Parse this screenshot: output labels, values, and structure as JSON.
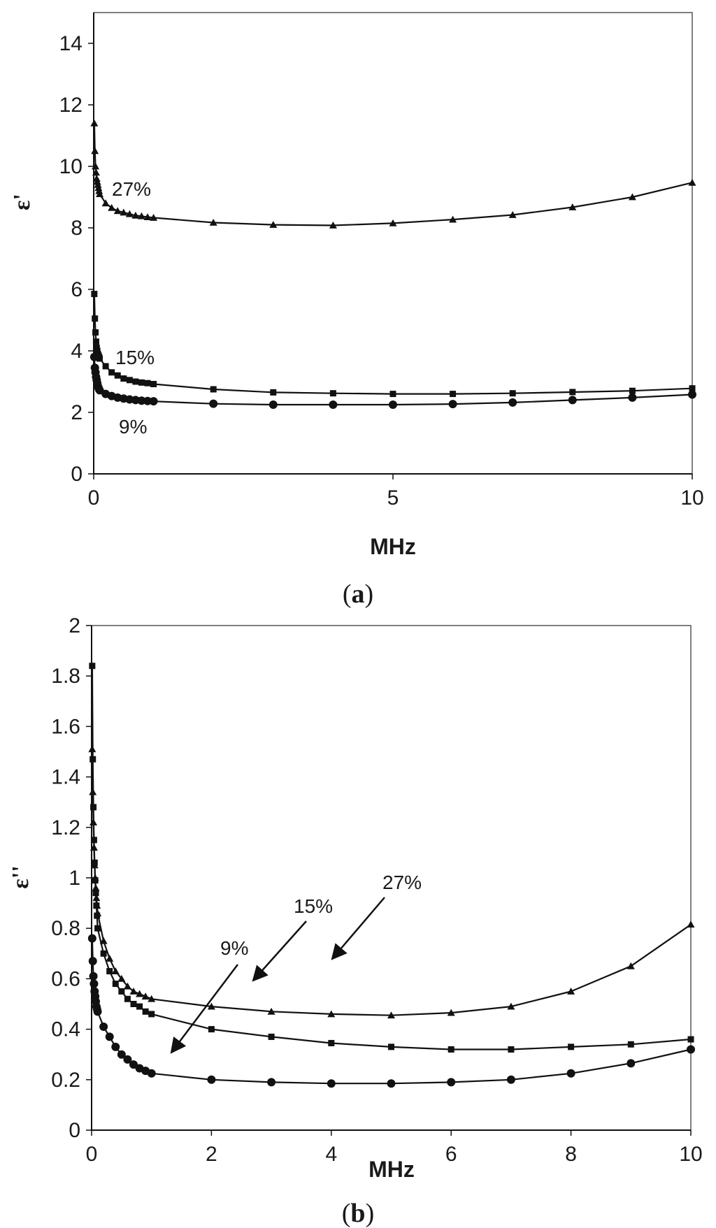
{
  "chart_data": [
    {
      "type": "line",
      "caption": [
        "(",
        "a",
        ")"
      ],
      "xlabel": "MHz",
      "ylabel": "ε'",
      "xlim": [
        0,
        10
      ],
      "ylim": [
        0,
        15
      ],
      "xticks": [
        0,
        5,
        10
      ],
      "yticks": [
        0,
        2,
        4,
        6,
        8,
        10,
        12,
        14
      ],
      "grid": false,
      "series": [
        {
          "name": "27%",
          "marker": "triangle",
          "x": [
            0.01,
            0.02,
            0.03,
            0.04,
            0.05,
            0.06,
            0.07,
            0.08,
            0.09,
            0.1,
            0.2,
            0.3,
            0.4,
            0.5,
            0.6,
            0.7,
            0.8,
            0.9,
            1,
            2,
            3,
            4,
            5,
            6,
            7,
            8,
            9,
            10
          ],
          "values": [
            11.4,
            10.5,
            10.0,
            9.8,
            9.6,
            9.5,
            9.4,
            9.3,
            9.2,
            9.1,
            8.8,
            8.65,
            8.55,
            8.5,
            8.45,
            8.4,
            8.38,
            8.35,
            8.33,
            8.17,
            8.1,
            8.08,
            8.15,
            8.27,
            8.42,
            8.67,
            9.0,
            9.47
          ]
        },
        {
          "name": "15%",
          "marker": "square",
          "x": [
            0.01,
            0.02,
            0.03,
            0.04,
            0.05,
            0.06,
            0.07,
            0.08,
            0.09,
            0.1,
            0.2,
            0.3,
            0.4,
            0.5,
            0.6,
            0.7,
            0.8,
            0.9,
            1,
            2,
            3,
            4,
            5,
            6,
            7,
            8,
            9,
            10
          ],
          "values": [
            5.85,
            5.05,
            4.6,
            4.3,
            4.1,
            4.0,
            3.9,
            3.85,
            3.8,
            3.75,
            3.5,
            3.3,
            3.2,
            3.1,
            3.05,
            3.0,
            2.97,
            2.95,
            2.92,
            2.75,
            2.65,
            2.62,
            2.6,
            2.6,
            2.62,
            2.66,
            2.7,
            2.78
          ]
        },
        {
          "name": "9%",
          "marker": "circle",
          "x": [
            0.01,
            0.02,
            0.03,
            0.04,
            0.05,
            0.06,
            0.07,
            0.08,
            0.09,
            0.1,
            0.2,
            0.3,
            0.4,
            0.5,
            0.6,
            0.7,
            0.8,
            0.9,
            1,
            2,
            3,
            4,
            5,
            6,
            7,
            8,
            9,
            10
          ],
          "values": [
            3.8,
            3.45,
            3.3,
            3.15,
            3.05,
            2.95,
            2.85,
            2.8,
            2.75,
            2.72,
            2.6,
            2.53,
            2.48,
            2.45,
            2.42,
            2.4,
            2.38,
            2.37,
            2.36,
            2.28,
            2.25,
            2.25,
            2.25,
            2.27,
            2.32,
            2.4,
            2.48,
            2.58
          ]
        }
      ],
      "annotations": [
        {
          "text": "27%",
          "series": "27%"
        },
        {
          "text": "15%",
          "series": "15%"
        },
        {
          "text": "9%",
          "series": "9%"
        }
      ]
    },
    {
      "type": "line",
      "caption": [
        "(",
        "b",
        ")"
      ],
      "xlabel": "MHz",
      "ylabel": "ε''",
      "xlim": [
        0,
        10
      ],
      "ylim": [
        0,
        2
      ],
      "xticks": [
        0,
        2,
        4,
        6,
        8,
        10
      ],
      "yticks": [
        0,
        0.2,
        0.4,
        0.6,
        0.8,
        1,
        1.2,
        1.4,
        1.6,
        1.8,
        2
      ],
      "grid": false,
      "series": [
        {
          "name": "27%",
          "marker": "triangle",
          "x": [
            0.01,
            0.02,
            0.03,
            0.04,
            0.05,
            0.06,
            0.07,
            0.08,
            0.09,
            0.1,
            0.2,
            0.3,
            0.4,
            0.5,
            0.6,
            0.7,
            0.8,
            0.9,
            1,
            2,
            3,
            4,
            5,
            6,
            7,
            8,
            9,
            10
          ],
          "values": [
            1.51,
            1.34,
            1.22,
            1.12,
            1.05,
            1.0,
            0.96,
            0.92,
            0.89,
            0.86,
            0.75,
            0.68,
            0.63,
            0.6,
            0.57,
            0.55,
            0.54,
            0.53,
            0.52,
            0.49,
            0.47,
            0.46,
            0.455,
            0.465,
            0.49,
            0.55,
            0.65,
            0.815
          ]
        },
        {
          "name": "15%",
          "marker": "square",
          "x": [
            0.01,
            0.02,
            0.03,
            0.04,
            0.05,
            0.06,
            0.07,
            0.08,
            0.09,
            0.1,
            0.2,
            0.3,
            0.4,
            0.5,
            0.6,
            0.7,
            0.8,
            0.9,
            1,
            2,
            3,
            4,
            5,
            6,
            7,
            8,
            9,
            10
          ],
          "values": [
            1.84,
            1.47,
            1.28,
            1.15,
            1.06,
            0.99,
            0.94,
            0.89,
            0.85,
            0.8,
            0.7,
            0.63,
            0.58,
            0.55,
            0.52,
            0.5,
            0.49,
            0.47,
            0.46,
            0.4,
            0.37,
            0.345,
            0.33,
            0.32,
            0.32,
            0.33,
            0.34,
            0.36
          ]
        },
        {
          "name": "9%",
          "marker": "circle",
          "x": [
            0.01,
            0.02,
            0.03,
            0.04,
            0.05,
            0.06,
            0.07,
            0.08,
            0.09,
            0.1,
            0.2,
            0.3,
            0.4,
            0.5,
            0.6,
            0.7,
            0.8,
            0.9,
            1,
            2,
            3,
            4,
            5,
            6,
            7,
            8,
            9,
            10
          ],
          "values": [
            0.76,
            0.67,
            0.61,
            0.58,
            0.55,
            0.53,
            0.51,
            0.49,
            0.48,
            0.47,
            0.41,
            0.37,
            0.33,
            0.3,
            0.28,
            0.26,
            0.245,
            0.235,
            0.225,
            0.2,
            0.19,
            0.185,
            0.185,
            0.19,
            0.2,
            0.225,
            0.265,
            0.32
          ]
        }
      ],
      "annotations": [
        {
          "text": "9%",
          "arrow_to": [
            1.3,
            0.235
          ]
        },
        {
          "text": "15%",
          "arrow_to": [
            2.7,
            0.37
          ]
        },
        {
          "text": "27%",
          "arrow_to": [
            4.0,
            0.465
          ]
        }
      ]
    }
  ]
}
